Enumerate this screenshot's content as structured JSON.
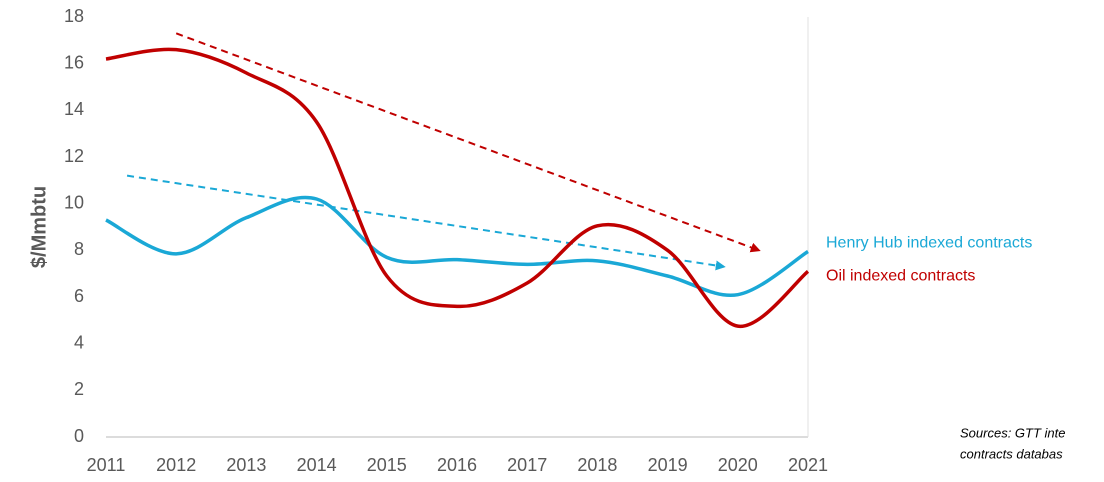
{
  "chart_data": {
    "type": "line",
    "y_label": "$/Mmbtu",
    "source": [
      "Sources: GTT inte",
      "contracts databas"
    ],
    "x": [
      2011,
      2012,
      2013,
      2014,
      2015,
      2016,
      2017,
      2018,
      2019,
      2020,
      2021
    ],
    "xlim": [
      2011,
      2021
    ],
    "xticks": [
      2011,
      2012,
      2013,
      2014,
      2015,
      2016,
      2017,
      2018,
      2019,
      2020,
      2021
    ],
    "ylim": [
      0,
      18
    ],
    "yticks": [
      0,
      2,
      4,
      6,
      8,
      10,
      12,
      14,
      16,
      18
    ],
    "series": [
      {
        "name": "Henry Hub indexed contracts",
        "color": "#1aa8d6",
        "values": [
          9.3,
          7.85,
          9.4,
          10.2,
          7.7,
          7.6,
          7.4,
          7.55,
          6.9,
          6.1,
          7.95
        ]
      },
      {
        "name": "Oil indexed contracts",
        "color": "#c00000",
        "values": [
          16.2,
          16.6,
          15.6,
          13.5,
          6.9,
          5.6,
          6.6,
          9.05,
          8.0,
          4.75,
          7.1
        ]
      }
    ],
    "trend_lines": [
      {
        "color": "#1aa8d6",
        "x": [
          2011.3,
          2019.8
        ],
        "values": [
          11.2,
          7.3
        ]
      },
      {
        "color": "#c00000",
        "x": [
          2012,
          2020.3
        ],
        "values": [
          17.3,
          8.0
        ]
      }
    ]
  }
}
